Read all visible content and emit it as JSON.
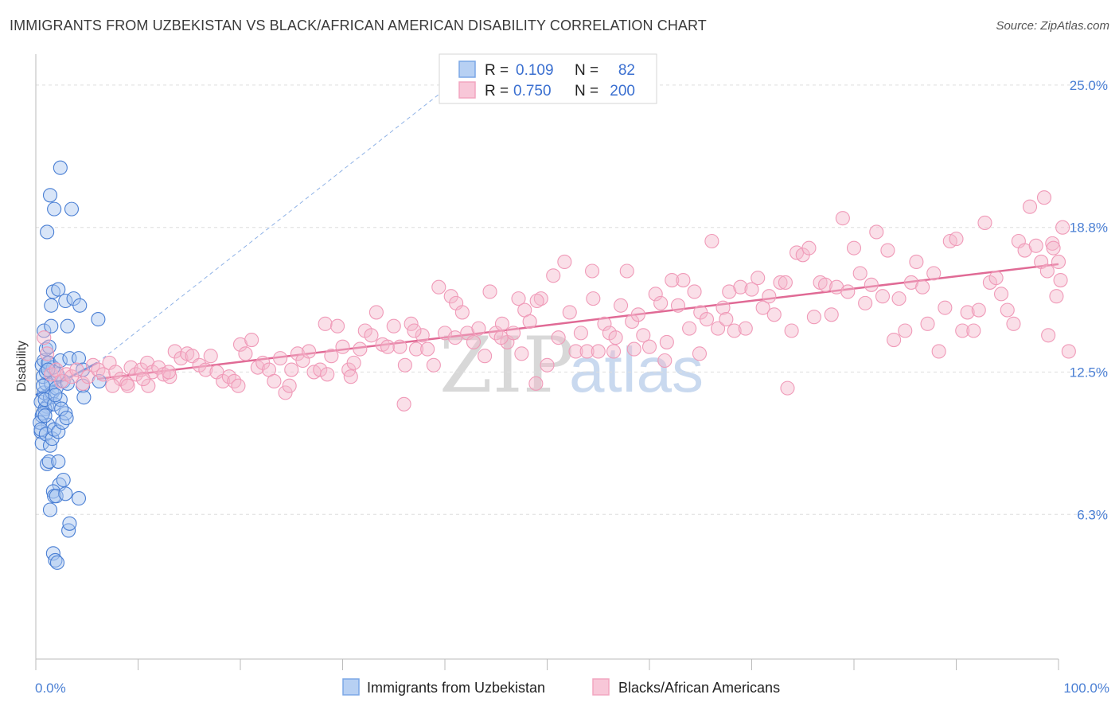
{
  "header": {
    "title": "IMMIGRANTS FROM UZBEKISTAN VS BLACK/AFRICAN AMERICAN DISABILITY CORRELATION CHART",
    "source": "Source: ZipAtlas.com"
  },
  "legend_top": {
    "rows": [
      {
        "r_label": "R =",
        "r_value": "0.109",
        "n_label": "N =",
        "n_value": "82",
        "color": "#7ba7e6"
      },
      {
        "r_label": "R =",
        "r_value": "0.750",
        "n_label": "N =",
        "n_value": "200",
        "color": "#f2a6c0"
      }
    ]
  },
  "legend_bottom": {
    "items": [
      {
        "label": "Immigrants from Uzbekistan",
        "color": "#7ba7e6"
      },
      {
        "label": "Blacks/African Americans",
        "color": "#f2a6c0"
      }
    ]
  },
  "watermark": {
    "zip": "ZIP",
    "atlas": "atlas"
  },
  "chart_data": {
    "type": "scatter",
    "title": "IMMIGRANTS FROM UZBEKISTAN VS BLACK/AFRICAN AMERICAN DISABILITY CORRELATION CHART",
    "xlabel": "",
    "ylabel": "Disability",
    "xlim": [
      0,
      100
    ],
    "ylim": [
      0,
      26
    ],
    "x_tick_labels": [
      "0.0%",
      "100.0%"
    ],
    "y_ticks": [
      6.3,
      12.5,
      18.8,
      25.0
    ],
    "y_tick_labels": [
      "6.3%",
      "12.5%",
      "18.8%",
      "25.0%"
    ],
    "grid": true,
    "legend": "top-center",
    "series": [
      {
        "name": "Immigrants from Uzbekistan",
        "color": "#4a7fd4",
        "fill": "#a9c6ef",
        "trend": {
          "x": [
            0,
            6
          ],
          "y": [
            11.5,
            12.9
          ],
          "extended_dashed_to": [
            42,
            25.5
          ]
        },
        "points": [
          [
            0.5,
            11.2
          ],
          [
            0.6,
            10.6
          ],
          [
            0.8,
            11.6
          ],
          [
            1.0,
            12.0
          ],
          [
            0.7,
            12.3
          ],
          [
            1.1,
            11.0
          ],
          [
            0.9,
            10.9
          ],
          [
            1.4,
            11.4
          ],
          [
            1.2,
            10.2
          ],
          [
            0.5,
            9.9
          ],
          [
            0.6,
            12.8
          ],
          [
            0.8,
            13.0
          ],
          [
            1.0,
            12.5
          ],
          [
            1.3,
            12.9
          ],
          [
            1.5,
            12.0
          ],
          [
            1.6,
            11.6
          ],
          [
            0.9,
            11.3
          ],
          [
            0.7,
            10.7
          ],
          [
            1.8,
            11.1
          ],
          [
            2.0,
            11.8
          ],
          [
            0.4,
            10.3
          ],
          [
            0.5,
            10.0
          ],
          [
            0.6,
            9.4
          ],
          [
            1.0,
            9.8
          ],
          [
            1.4,
            9.3
          ],
          [
            1.6,
            9.6
          ],
          [
            1.8,
            10.0
          ],
          [
            2.2,
            9.9
          ],
          [
            2.6,
            10.3
          ],
          [
            2.9,
            10.7
          ],
          [
            2.4,
            11.3
          ],
          [
            2.7,
            12.1
          ],
          [
            3.1,
            12.0
          ],
          [
            2.1,
            12.4
          ],
          [
            1.7,
            12.7
          ],
          [
            1.2,
            12.9
          ],
          [
            1.0,
            13.5
          ],
          [
            2.4,
            13.0
          ],
          [
            0.8,
            14.3
          ],
          [
            1.3,
            13.6
          ],
          [
            1.5,
            14.5
          ],
          [
            3.1,
            14.5
          ],
          [
            3.3,
            13.1
          ],
          [
            4.2,
            13.1
          ],
          [
            4.6,
            12.6
          ],
          [
            4.6,
            11.9
          ],
          [
            4.7,
            11.4
          ],
          [
            6.2,
            12.1
          ],
          [
            1.5,
            15.4
          ],
          [
            1.7,
            16.0
          ],
          [
            2.2,
            16.1
          ],
          [
            2.9,
            15.6
          ],
          [
            3.7,
            15.7
          ],
          [
            4.3,
            15.4
          ],
          [
            6.1,
            14.8
          ],
          [
            1.1,
            18.6
          ],
          [
            1.4,
            20.2
          ],
          [
            1.8,
            19.6
          ],
          [
            3.5,
            19.6
          ],
          [
            2.4,
            21.4
          ],
          [
            0.7,
            11.9
          ],
          [
            1.1,
            8.5
          ],
          [
            1.3,
            8.6
          ],
          [
            2.2,
            8.6
          ],
          [
            2.3,
            7.6
          ],
          [
            2.7,
            7.8
          ],
          [
            1.7,
            7.3
          ],
          [
            1.8,
            7.1
          ],
          [
            2.0,
            7.1
          ],
          [
            2.9,
            7.2
          ],
          [
            4.2,
            7.0
          ],
          [
            1.4,
            6.5
          ],
          [
            3.2,
            5.6
          ],
          [
            3.3,
            5.9
          ],
          [
            1.7,
            4.6
          ],
          [
            1.9,
            4.3
          ],
          [
            2.1,
            4.2
          ],
          [
            0.9,
            10.6
          ],
          [
            1.9,
            11.5
          ],
          [
            2.5,
            10.9
          ],
          [
            3.0,
            10.5
          ],
          [
            1.2,
            12.6
          ]
        ]
      },
      {
        "name": "Blacks/African Americans",
        "color": "#e06a95",
        "fill": "#f5b8cd",
        "trend": {
          "x": [
            6,
            100
          ],
          "y": [
            12.2,
            17.2
          ]
        },
        "points": [
          [
            0.8,
            14.0
          ],
          [
            1.1,
            13.3
          ],
          [
            1.5,
            12.4
          ],
          [
            2.0,
            12.6
          ],
          [
            2.5,
            12.1
          ],
          [
            3.0,
            12.4
          ],
          [
            3.5,
            12.3
          ],
          [
            4.0,
            12.6
          ],
          [
            4.6,
            12.0
          ],
          [
            5.1,
            12.3
          ],
          [
            5.6,
            12.8
          ],
          [
            6.1,
            12.6
          ],
          [
            6.6,
            12.4
          ],
          [
            7.2,
            12.9
          ],
          [
            7.8,
            12.5
          ],
          [
            8.3,
            12.2
          ],
          [
            8.9,
            12.0
          ],
          [
            9.3,
            12.7
          ],
          [
            9.8,
            12.4
          ],
          [
            10.3,
            12.6
          ],
          [
            10.9,
            12.9
          ],
          [
            11.4,
            12.5
          ],
          [
            12.0,
            12.7
          ],
          [
            12.5,
            12.4
          ],
          [
            13.1,
            12.3
          ],
          [
            13.6,
            13.4
          ],
          [
            14.2,
            13.1
          ],
          [
            14.8,
            13.3
          ],
          [
            15.3,
            13.2
          ],
          [
            16.0,
            12.8
          ],
          [
            16.6,
            12.6
          ],
          [
            17.1,
            13.2
          ],
          [
            17.7,
            12.5
          ],
          [
            18.3,
            12.1
          ],
          [
            18.9,
            12.3
          ],
          [
            19.4,
            12.1
          ],
          [
            20.0,
            13.7
          ],
          [
            20.5,
            13.3
          ],
          [
            21.1,
            13.9
          ],
          [
            21.7,
            12.7
          ],
          [
            22.2,
            12.9
          ],
          [
            22.8,
            12.6
          ],
          [
            23.3,
            12.1
          ],
          [
            23.9,
            13.1
          ],
          [
            24.4,
            11.6
          ],
          [
            25.0,
            12.6
          ],
          [
            25.6,
            13.3
          ],
          [
            26.1,
            13.0
          ],
          [
            26.7,
            13.4
          ],
          [
            27.2,
            12.5
          ],
          [
            27.8,
            12.6
          ],
          [
            28.3,
            14.6
          ],
          [
            28.9,
            13.2
          ],
          [
            29.5,
            14.5
          ],
          [
            30.0,
            13.6
          ],
          [
            30.6,
            12.6
          ],
          [
            31.1,
            12.9
          ],
          [
            31.7,
            13.5
          ],
          [
            32.2,
            14.3
          ],
          [
            32.8,
            14.1
          ],
          [
            33.3,
            15.1
          ],
          [
            33.9,
            13.7
          ],
          [
            34.4,
            13.6
          ],
          [
            35.0,
            14.5
          ],
          [
            35.6,
            13.6
          ],
          [
            36.1,
            12.8
          ],
          [
            36.7,
            14.6
          ],
          [
            37.2,
            13.5
          ],
          [
            37.8,
            14.1
          ],
          [
            38.3,
            13.5
          ],
          [
            38.9,
            12.8
          ],
          [
            39.4,
            16.2
          ],
          [
            40.0,
            14.2
          ],
          [
            40.6,
            15.8
          ],
          [
            41.1,
            15.5
          ],
          [
            41.7,
            15.1
          ],
          [
            42.2,
            14.2
          ],
          [
            42.8,
            13.8
          ],
          [
            43.3,
            14.4
          ],
          [
            43.9,
            13.2
          ],
          [
            44.4,
            16.0
          ],
          [
            45.0,
            14.2
          ],
          [
            45.6,
            14.6
          ],
          [
            46.1,
            13.8
          ],
          [
            46.7,
            14.2
          ],
          [
            47.2,
            15.7
          ],
          [
            47.8,
            15.2
          ],
          [
            48.3,
            14.7
          ],
          [
            48.9,
            12.0
          ],
          [
            49.4,
            15.7
          ],
          [
            50.0,
            12.8
          ],
          [
            50.6,
            16.7
          ],
          [
            51.1,
            14.0
          ],
          [
            51.7,
            17.3
          ],
          [
            52.2,
            15.1
          ],
          [
            52.8,
            13.4
          ],
          [
            53.3,
            14.2
          ],
          [
            53.9,
            13.4
          ],
          [
            54.4,
            16.9
          ],
          [
            55.0,
            13.4
          ],
          [
            55.6,
            14.6
          ],
          [
            56.1,
            14.2
          ],
          [
            56.7,
            14.0
          ],
          [
            57.2,
            15.4
          ],
          [
            57.8,
            16.9
          ],
          [
            58.3,
            14.7
          ],
          [
            58.9,
            15.0
          ],
          [
            59.4,
            14.1
          ],
          [
            60.0,
            13.6
          ],
          [
            60.6,
            15.9
          ],
          [
            61.1,
            15.5
          ],
          [
            61.7,
            13.8
          ],
          [
            62.2,
            16.5
          ],
          [
            62.8,
            15.4
          ],
          [
            63.3,
            16.5
          ],
          [
            63.9,
            14.4
          ],
          [
            64.4,
            16.0
          ],
          [
            65.0,
            15.1
          ],
          [
            65.6,
            14.8
          ],
          [
            66.1,
            18.2
          ],
          [
            66.7,
            14.4
          ],
          [
            67.2,
            15.3
          ],
          [
            67.8,
            16.0
          ],
          [
            68.3,
            14.3
          ],
          [
            68.9,
            16.2
          ],
          [
            69.4,
            14.4
          ],
          [
            70.0,
            16.1
          ],
          [
            70.6,
            16.6
          ],
          [
            71.1,
            15.3
          ],
          [
            71.7,
            15.8
          ],
          [
            72.2,
            15.0
          ],
          [
            72.8,
            16.4
          ],
          [
            73.3,
            16.4
          ],
          [
            73.9,
            14.3
          ],
          [
            74.4,
            17.7
          ],
          [
            75.0,
            17.6
          ],
          [
            75.6,
            17.9
          ],
          [
            76.1,
            14.9
          ],
          [
            76.7,
            16.4
          ],
          [
            77.2,
            16.3
          ],
          [
            77.8,
            15.0
          ],
          [
            78.3,
            16.2
          ],
          [
            78.9,
            19.2
          ],
          [
            79.4,
            16.0
          ],
          [
            80.0,
            17.9
          ],
          [
            80.6,
            16.8
          ],
          [
            81.1,
            15.5
          ],
          [
            81.7,
            16.3
          ],
          [
            82.2,
            18.6
          ],
          [
            82.8,
            15.8
          ],
          [
            83.3,
            17.8
          ],
          [
            83.9,
            13.9
          ],
          [
            84.4,
            15.7
          ],
          [
            85.0,
            14.3
          ],
          [
            85.6,
            16.4
          ],
          [
            86.1,
            17.3
          ],
          [
            86.7,
            16.2
          ],
          [
            87.2,
            14.6
          ],
          [
            87.8,
            16.8
          ],
          [
            88.3,
            13.4
          ],
          [
            88.9,
            15.3
          ],
          [
            89.4,
            18.2
          ],
          [
            90.0,
            18.3
          ],
          [
            90.6,
            14.3
          ],
          [
            91.1,
            15.1
          ],
          [
            91.7,
            14.3
          ],
          [
            92.2,
            15.2
          ],
          [
            92.8,
            19.0
          ],
          [
            93.3,
            16.4
          ],
          [
            93.9,
            16.6
          ],
          [
            94.4,
            15.9
          ],
          [
            95.0,
            15.2
          ],
          [
            95.6,
            14.6
          ],
          [
            96.1,
            18.2
          ],
          [
            96.7,
            17.8
          ],
          [
            97.2,
            19.7
          ],
          [
            97.8,
            18.0
          ],
          [
            98.3,
            17.3
          ],
          [
            98.9,
            16.9
          ],
          [
            99.4,
            18.1
          ],
          [
            100.0,
            17.3
          ],
          [
            99.5,
            17.9
          ],
          [
            98.6,
            20.1
          ],
          [
            99.0,
            14.1
          ],
          [
            100.4,
            18.8
          ],
          [
            99.8,
            15.8
          ],
          [
            100.2,
            16.5
          ],
          [
            101.0,
            13.4
          ],
          [
            11.0,
            11.9
          ],
          [
            7.5,
            11.9
          ],
          [
            9.0,
            11.9
          ],
          [
            28.5,
            12.4
          ],
          [
            30.8,
            12.3
          ],
          [
            37.0,
            14.3
          ],
          [
            41.0,
            14.0
          ],
          [
            45.5,
            14.0
          ],
          [
            49.0,
            15.6
          ],
          [
            54.5,
            15.7
          ],
          [
            56.5,
            13.4
          ],
          [
            58.5,
            13.5
          ],
          [
            36.0,
            11.1
          ],
          [
            10.5,
            12.2
          ],
          [
            13.0,
            12.5
          ],
          [
            19.8,
            11.9
          ],
          [
            24.8,
            11.9
          ],
          [
            47.5,
            13.3
          ],
          [
            61.5,
            13.0
          ],
          [
            64.9,
            13.3
          ],
          [
            73.5,
            11.8
          ],
          [
            67.5,
            14.8
          ]
        ]
      }
    ]
  }
}
